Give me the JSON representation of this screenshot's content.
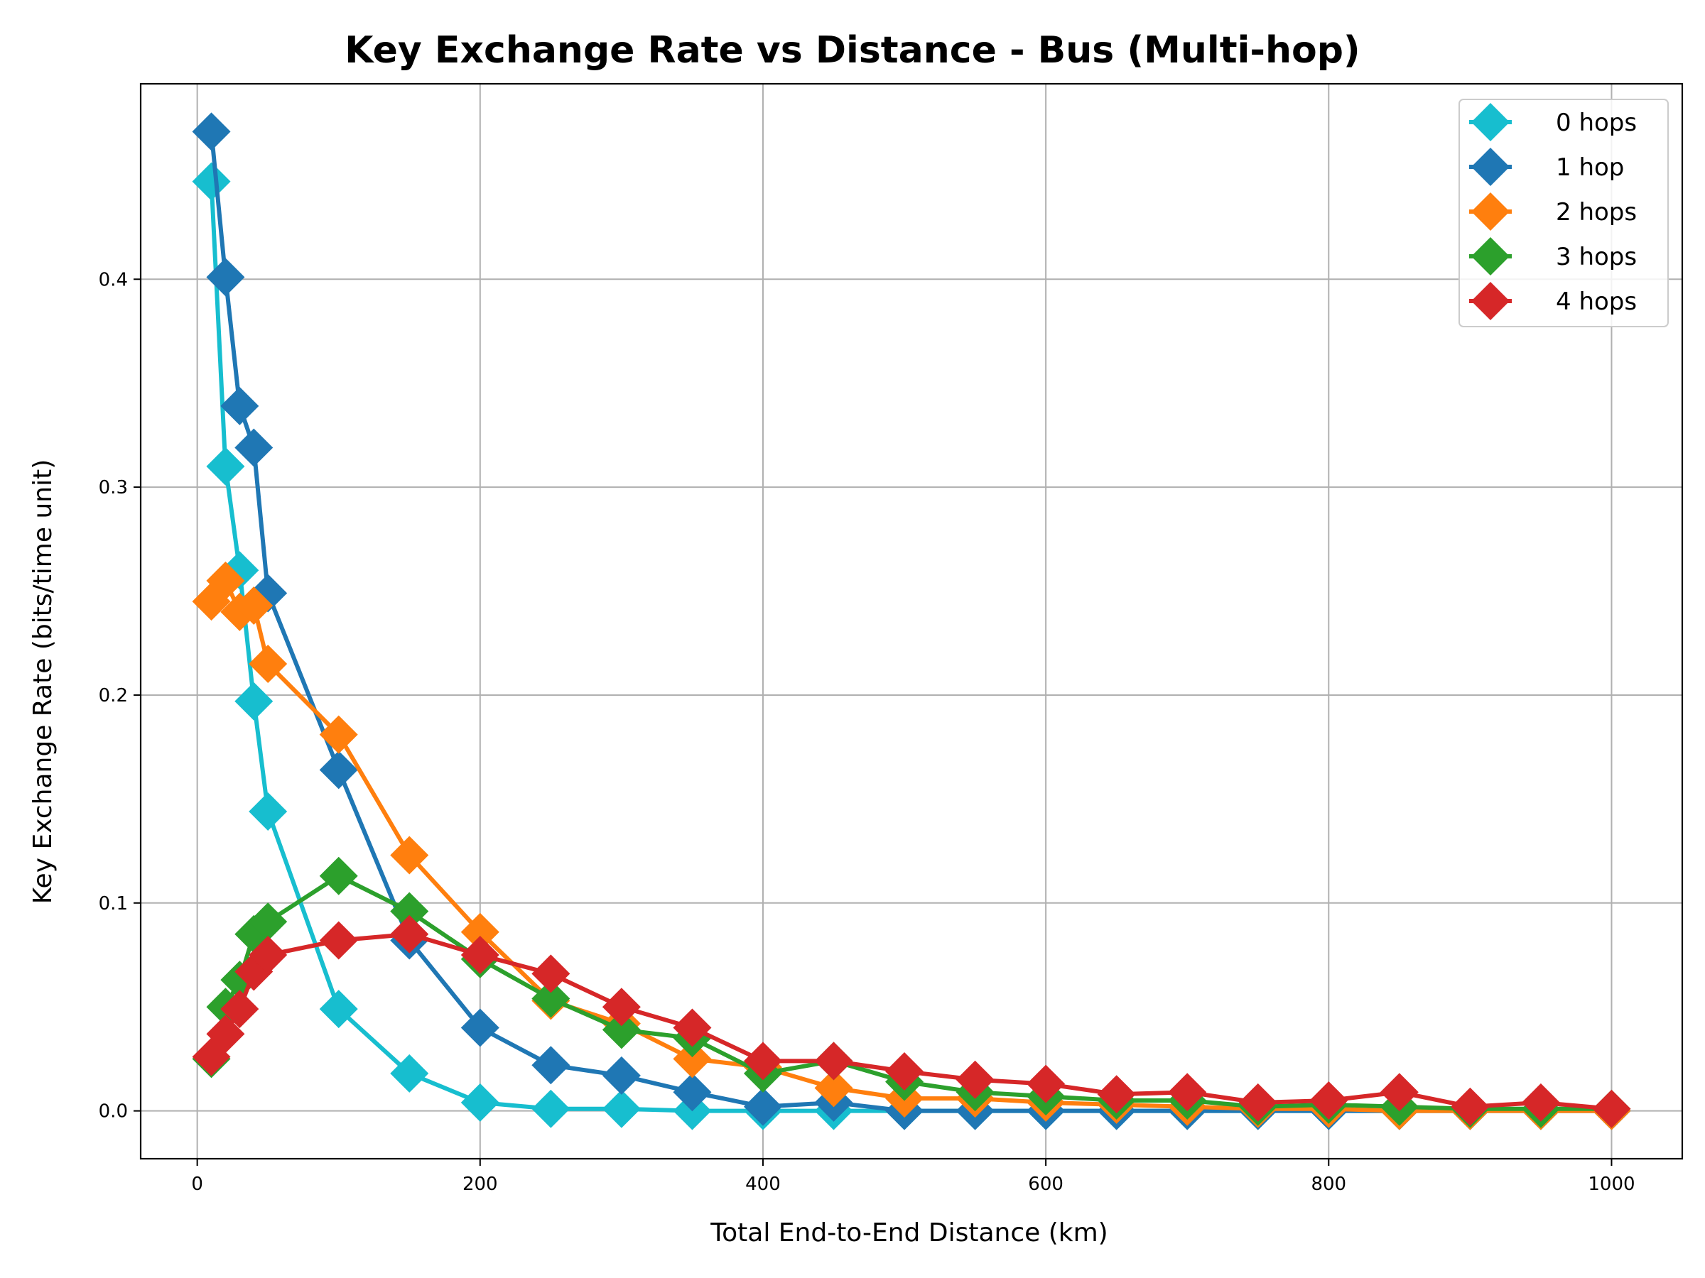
{
  "chart_data": {
    "type": "line",
    "title": "Key Exchange Rate vs Distance - Bus (Multi-hop)",
    "xlabel": "Total End-to-End Distance (km)",
    "ylabel": "Key Exchange Rate (bits/time unit)",
    "xlim": [
      -40,
      1050
    ],
    "ylim": [
      -0.023,
      0.494
    ],
    "xticks": [
      0,
      200,
      400,
      600,
      800,
      1000
    ],
    "xtick_labels": [
      "0",
      "200",
      "400",
      "600",
      "800",
      "1000"
    ],
    "yticks": [
      0.0,
      0.1,
      0.2,
      0.3,
      0.4
    ],
    "ytick_labels": [
      "0.0",
      "0.1",
      "0.2",
      "0.3",
      "0.4"
    ],
    "grid": true,
    "legend_position": "top-right",
    "series": [
      {
        "name": "0 hops",
        "color": "#17becf",
        "x": [
          10,
          20,
          30,
          40,
          50,
          100,
          150,
          200,
          250,
          300,
          350,
          400,
          450,
          500,
          550,
          600,
          650,
          700,
          750,
          800,
          850,
          900,
          950,
          1000
        ],
        "y": [
          0.447,
          0.31,
          0.26,
          0.197,
          0.144,
          0.049,
          0.018,
          0.004,
          0.001,
          0.001,
          0.0,
          0.0,
          0.0,
          0.0,
          0.0,
          0.0,
          0.0,
          0.0,
          0.0,
          0.0,
          0.0,
          0.0,
          0.0,
          0.0
        ]
      },
      {
        "name": "1 hop",
        "color": "#1f77b4",
        "x": [
          10,
          20,
          30,
          40,
          50,
          100,
          150,
          200,
          250,
          300,
          350,
          400,
          450,
          500,
          550,
          600,
          650,
          700,
          750,
          800,
          850,
          900,
          950,
          1000
        ],
        "y": [
          0.471,
          0.401,
          0.339,
          0.319,
          0.249,
          0.164,
          0.082,
          0.04,
          0.022,
          0.017,
          0.009,
          0.002,
          0.004,
          0.0,
          0.0,
          0.0,
          0.0,
          0.0,
          0.0,
          0.0,
          0.0,
          0.0,
          0.0,
          0.0
        ]
      },
      {
        "name": "2 hops",
        "color": "#ff7f0e",
        "x": [
          10,
          20,
          30,
          40,
          50,
          100,
          150,
          200,
          250,
          300,
          350,
          400,
          450,
          500,
          550,
          600,
          650,
          700,
          750,
          800,
          850,
          900,
          950,
          1000
        ],
        "y": [
          0.245,
          0.255,
          0.24,
          0.243,
          0.215,
          0.181,
          0.123,
          0.086,
          0.053,
          0.042,
          0.025,
          0.021,
          0.011,
          0.006,
          0.006,
          0.004,
          0.003,
          0.002,
          0.001,
          0.001,
          0.0,
          0.0,
          0.0,
          0.0
        ]
      },
      {
        "name": "3 hops",
        "color": "#2ca02c",
        "x": [
          10,
          20,
          30,
          40,
          50,
          100,
          150,
          200,
          250,
          300,
          350,
          400,
          450,
          500,
          550,
          600,
          650,
          700,
          750,
          800,
          850,
          900,
          950,
          1000
        ],
        "y": [
          0.025,
          0.05,
          0.063,
          0.085,
          0.091,
          0.113,
          0.096,
          0.073,
          0.054,
          0.039,
          0.035,
          0.018,
          0.024,
          0.014,
          0.009,
          0.007,
          0.005,
          0.005,
          0.002,
          0.003,
          0.002,
          0.001,
          0.001,
          0.001
        ]
      },
      {
        "name": "4 hops",
        "color": "#d62728",
        "x": [
          10,
          20,
          30,
          40,
          50,
          100,
          150,
          200,
          250,
          300,
          350,
          400,
          450,
          500,
          550,
          600,
          650,
          700,
          750,
          800,
          850,
          900,
          950,
          1000
        ],
        "y": [
          0.026,
          0.037,
          0.049,
          0.067,
          0.075,
          0.082,
          0.085,
          0.075,
          0.066,
          0.05,
          0.04,
          0.024,
          0.024,
          0.019,
          0.015,
          0.013,
          0.008,
          0.009,
          0.004,
          0.005,
          0.009,
          0.002,
          0.004,
          0.001
        ]
      }
    ]
  }
}
